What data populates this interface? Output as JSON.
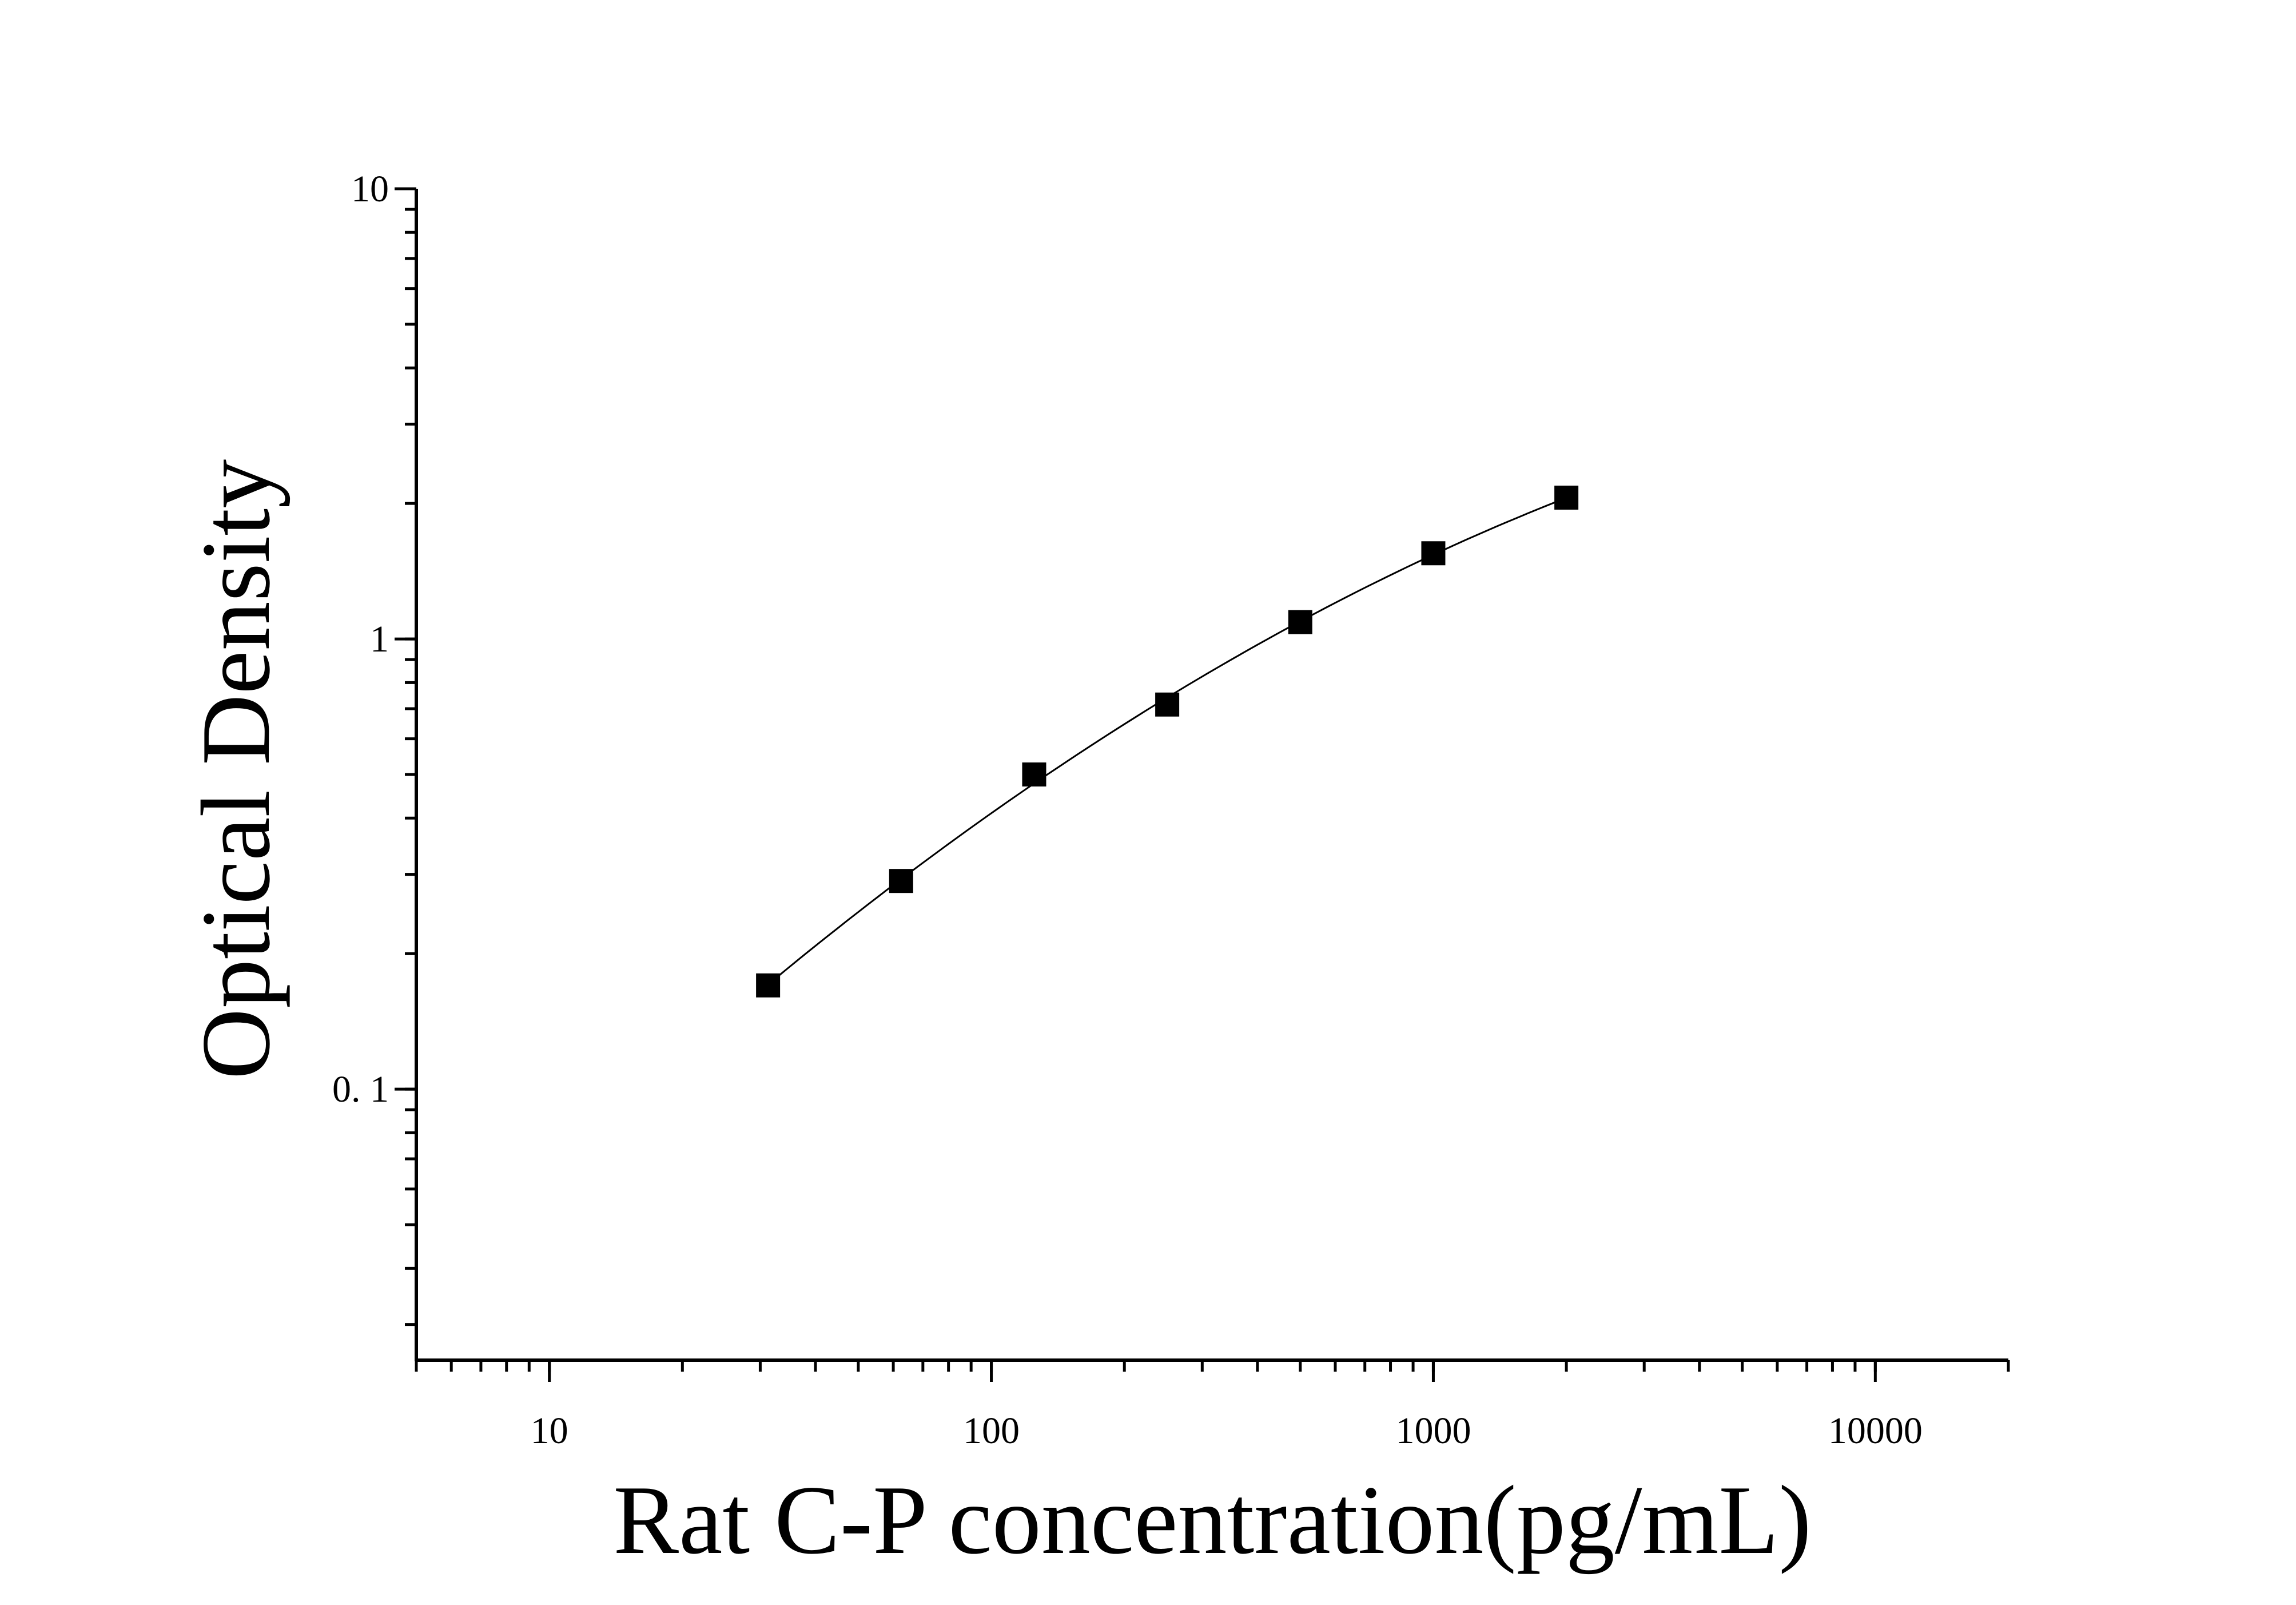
{
  "chart_data": {
    "type": "scatter",
    "title": "",
    "xlabel": "Rat C-P concentration(pg/mL)",
    "ylabel": "Optical Density",
    "x_scale": "log",
    "y_scale": "log",
    "xlim": [
      5,
      20000
    ],
    "ylim": [
      0.025,
      10
    ],
    "x_ticks": [
      {
        "value": 10,
        "label": "10"
      },
      {
        "value": 100,
        "label": "100"
      },
      {
        "value": 1000,
        "label": "1000"
      },
      {
        "value": 10000,
        "label": "10000"
      }
    ],
    "y_ticks": [
      {
        "value": 0.1,
        "label": "0. 1"
      },
      {
        "value": 1,
        "label": "1"
      },
      {
        "value": 10,
        "label": "10"
      }
    ],
    "grid": false,
    "legend": "none",
    "series": [
      {
        "x": [
          31.25,
          62.5,
          125,
          250,
          500,
          1000,
          2000
        ],
        "y": [
          0.17,
          0.29,
          0.5,
          0.715,
          1.09,
          1.55,
          2.06
        ],
        "marker": "square",
        "fit_line": true
      }
    ],
    "colors": {
      "marker": "#000000",
      "line": "#000000",
      "axis": "#000000"
    }
  }
}
